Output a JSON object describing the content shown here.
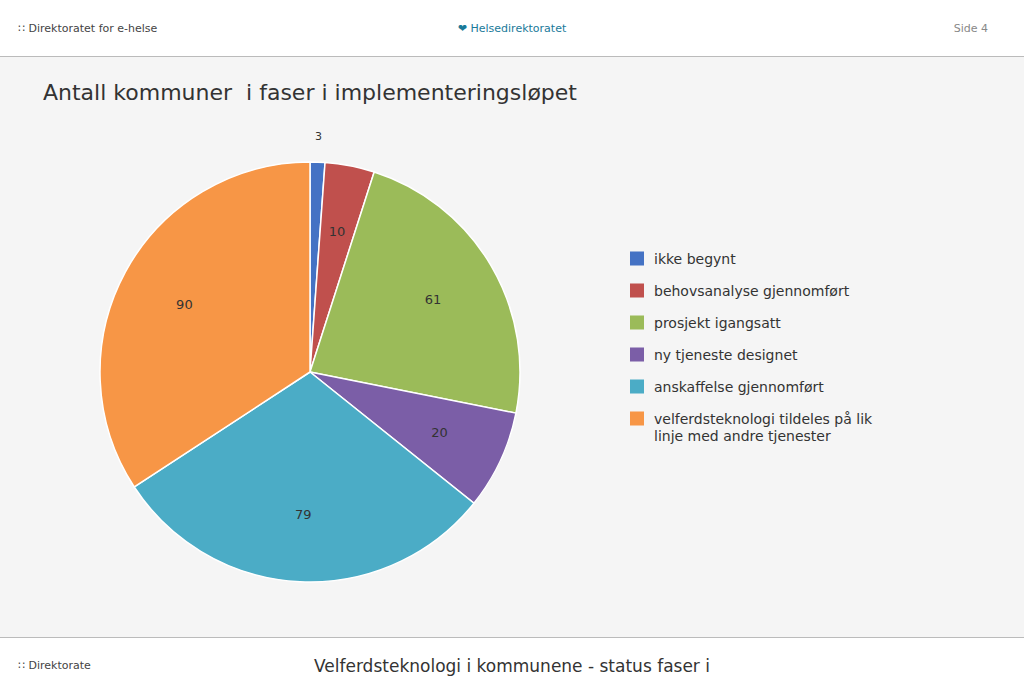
{
  "chart_data": {
    "type": "pie",
    "title": "Antall kommuner  i faser i implementeringsløpet",
    "categories": [
      "ikke begynt",
      "behovsanalyse gjennomført",
      "prosjekt igangsatt",
      "ny tjeneste designet",
      "anskaffelse gjennomført",
      "velferdsteknologi tildeles på lik\nlinje med andre tjenester"
    ],
    "values": [
      3,
      10,
      61,
      20,
      79,
      90
    ],
    "colors": [
      "#4472C4",
      "#C0504D",
      "#9BBB59",
      "#7B5EA7",
      "#4BACC6",
      "#F79646"
    ],
    "data_labels": true,
    "legend": "right",
    "annotations": [
      "∷ Direktoratet for e-helse",
      "❤ Helsedirektoratet",
      "Side 4",
      "Velferdsteknologi i kommunene - status faser i",
      "∷ Direktorate"
    ]
  }
}
